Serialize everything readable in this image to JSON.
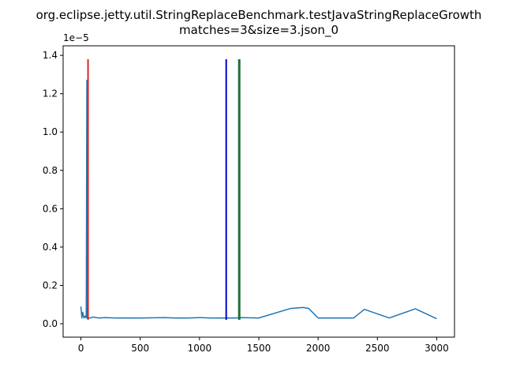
{
  "chart_data": {
    "type": "line",
    "title": "org.eclipse.jetty.util.StringReplaceBenchmark.testJavaStringReplaceGrowth\nmatches=3&size=3.json_0",
    "title_lines": [
      "org.eclipse.jetty.util.StringReplaceBenchmark.testJavaStringReplaceGrowth",
      "matches=3&size=3.json_0"
    ],
    "xlabel": "",
    "ylabel": "",
    "y_offset_label": "1e−5",
    "xlim": [
      -150,
      3150
    ],
    "ylim": [
      -0.07,
      1.45
    ],
    "x_ticks": [
      0,
      500,
      1000,
      1500,
      2000,
      2500,
      3000
    ],
    "x_tick_labels": [
      "0",
      "500",
      "1000",
      "1500",
      "2000",
      "2500",
      "3000"
    ],
    "y_ticks": [
      0.0,
      0.2,
      0.4,
      0.6,
      0.8,
      1.0,
      1.2,
      1.4
    ],
    "y_tick_labels": [
      "0.0",
      "0.2",
      "0.4",
      "0.6",
      "0.8",
      "1.0",
      "1.2",
      "1.4"
    ],
    "grid": false,
    "series": [
      {
        "color": "#1f77b4",
        "baseline": 0.026,
        "points": [
          [
            0,
            0.09
          ],
          [
            8,
            0.03
          ],
          [
            15,
            0.06
          ],
          [
            25,
            0.03
          ],
          [
            35,
            0.04
          ],
          [
            45,
            0.03
          ],
          [
            50,
            1.27
          ],
          [
            55,
            0.03
          ],
          [
            65,
            0.03
          ],
          [
            80,
            0.03
          ],
          [
            100,
            0.035
          ],
          [
            150,
            0.03
          ],
          [
            200,
            0.032
          ],
          [
            300,
            0.03
          ],
          [
            420,
            0.03
          ],
          [
            500,
            0.03
          ],
          [
            700,
            0.032
          ],
          [
            800,
            0.03
          ],
          [
            900,
            0.03
          ],
          [
            1000,
            0.032
          ],
          [
            1100,
            0.03
          ],
          [
            1200,
            0.03
          ],
          [
            1300,
            0.03
          ],
          [
            1350,
            0.032
          ],
          [
            1500,
            0.03
          ],
          [
            1770,
            0.08
          ],
          [
            1870,
            0.085
          ],
          [
            1920,
            0.08
          ],
          [
            2000,
            0.03
          ],
          [
            2150,
            0.03
          ],
          [
            2300,
            0.03
          ],
          [
            2390,
            0.075
          ],
          [
            2600,
            0.03
          ],
          [
            2820,
            0.078
          ],
          [
            3000,
            0.026
          ]
        ]
      }
    ],
    "vertical_lines": [
      {
        "color": "#d62728",
        "x": 60,
        "y_range": [
          0.02,
          1.38
        ]
      },
      {
        "color": "#0000cc",
        "x": 1225,
        "y_range": [
          0.02,
          1.38
        ]
      },
      {
        "color": "#1e6e3c",
        "x": 1335,
        "y_range": [
          0.02,
          1.38
        ]
      }
    ]
  }
}
